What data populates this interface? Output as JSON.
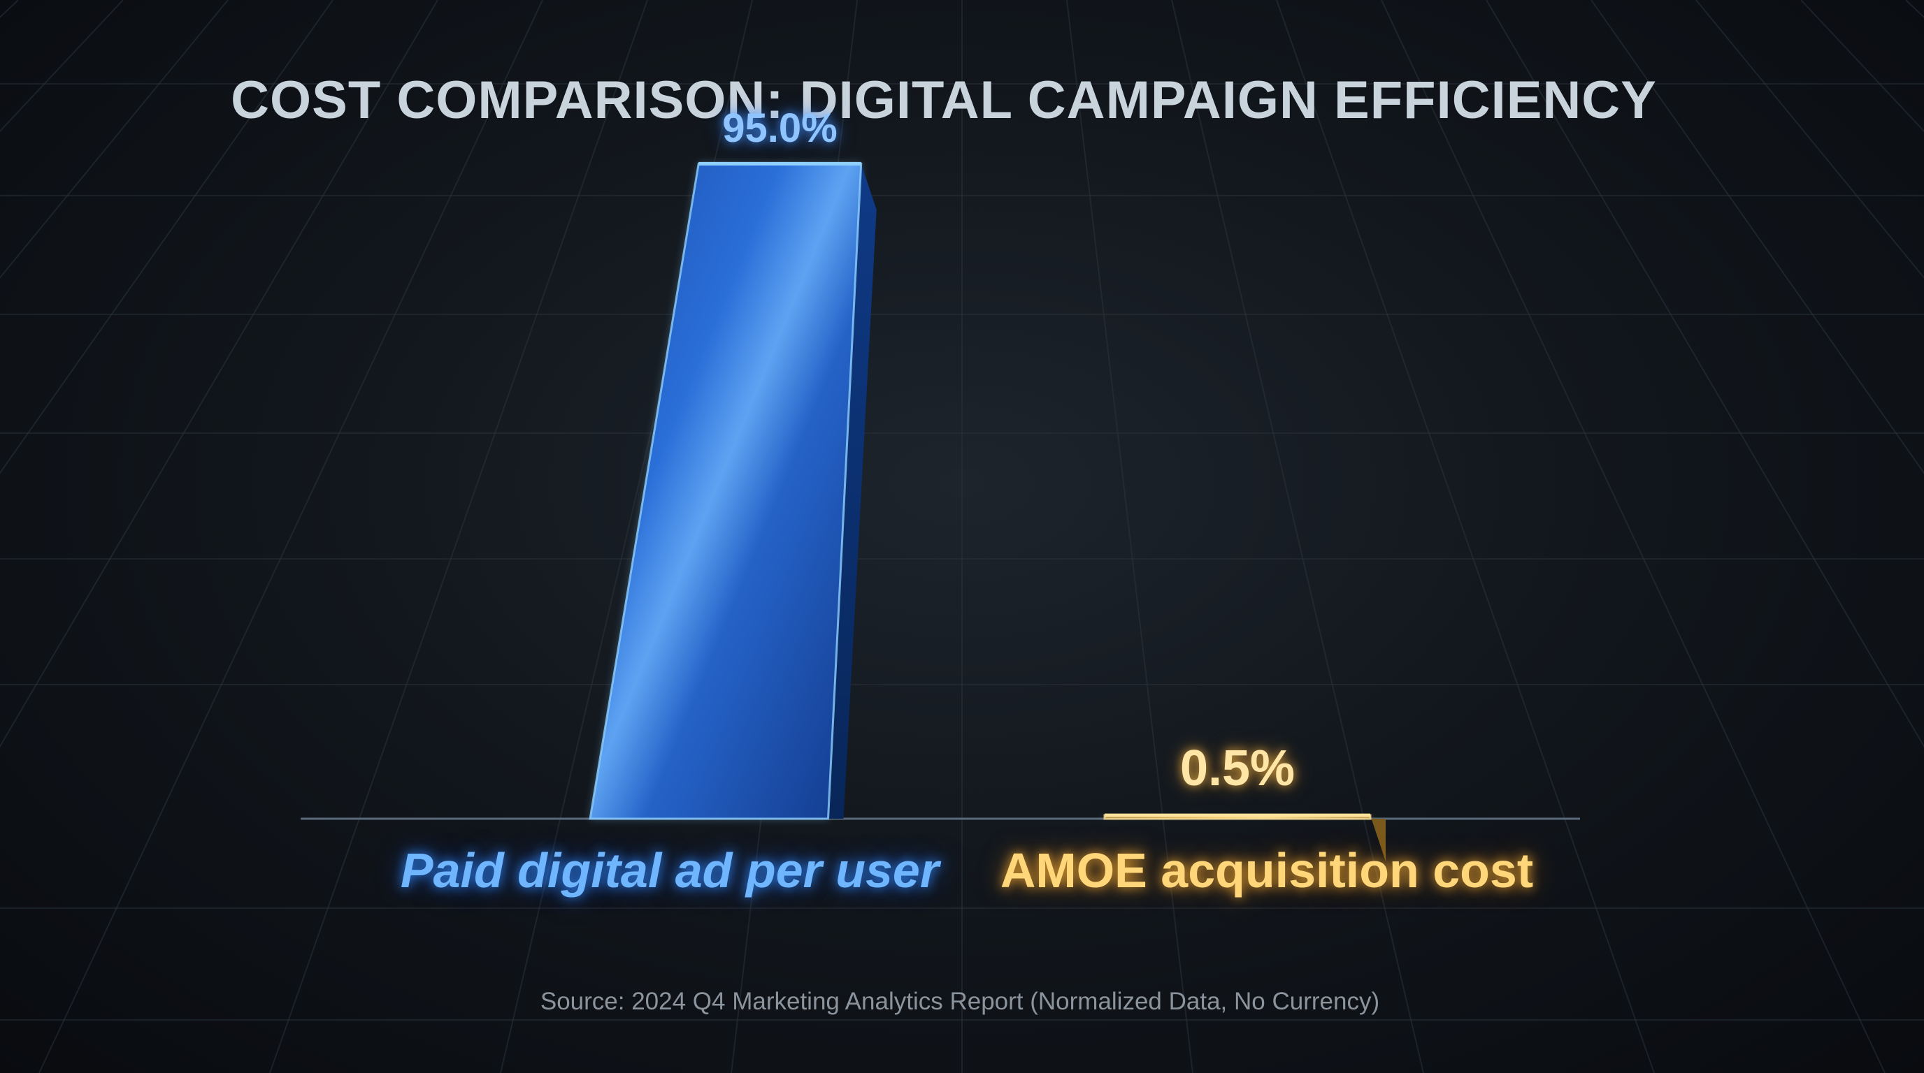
{
  "colors": {
    "primary_bar": "#1e63d6",
    "primary_glow": "#6fb6ff",
    "secondary_bar": "#c89a3a",
    "secondary_glow": "#ffd77a",
    "title": "#c9d3dc",
    "background": "#0b0e13"
  },
  "chart_data": {
    "type": "bar",
    "title": "COST COMPARISON: DIGITAL CAMPAIGN EFFICIENCY",
    "categories": [
      "Paid digital ad per user",
      "AMOE acquisition cost"
    ],
    "values": [
      95.0,
      0.5
    ],
    "value_labels": [
      "95.0%",
      "0.5%"
    ],
    "xlabel": "",
    "ylabel": "",
    "ylim": [
      0,
      100
    ],
    "grid": true,
    "legend": "none",
    "source": "Source: 2024 Q4 Marketing Analytics Report (Normalized Data, No Currency)"
  }
}
